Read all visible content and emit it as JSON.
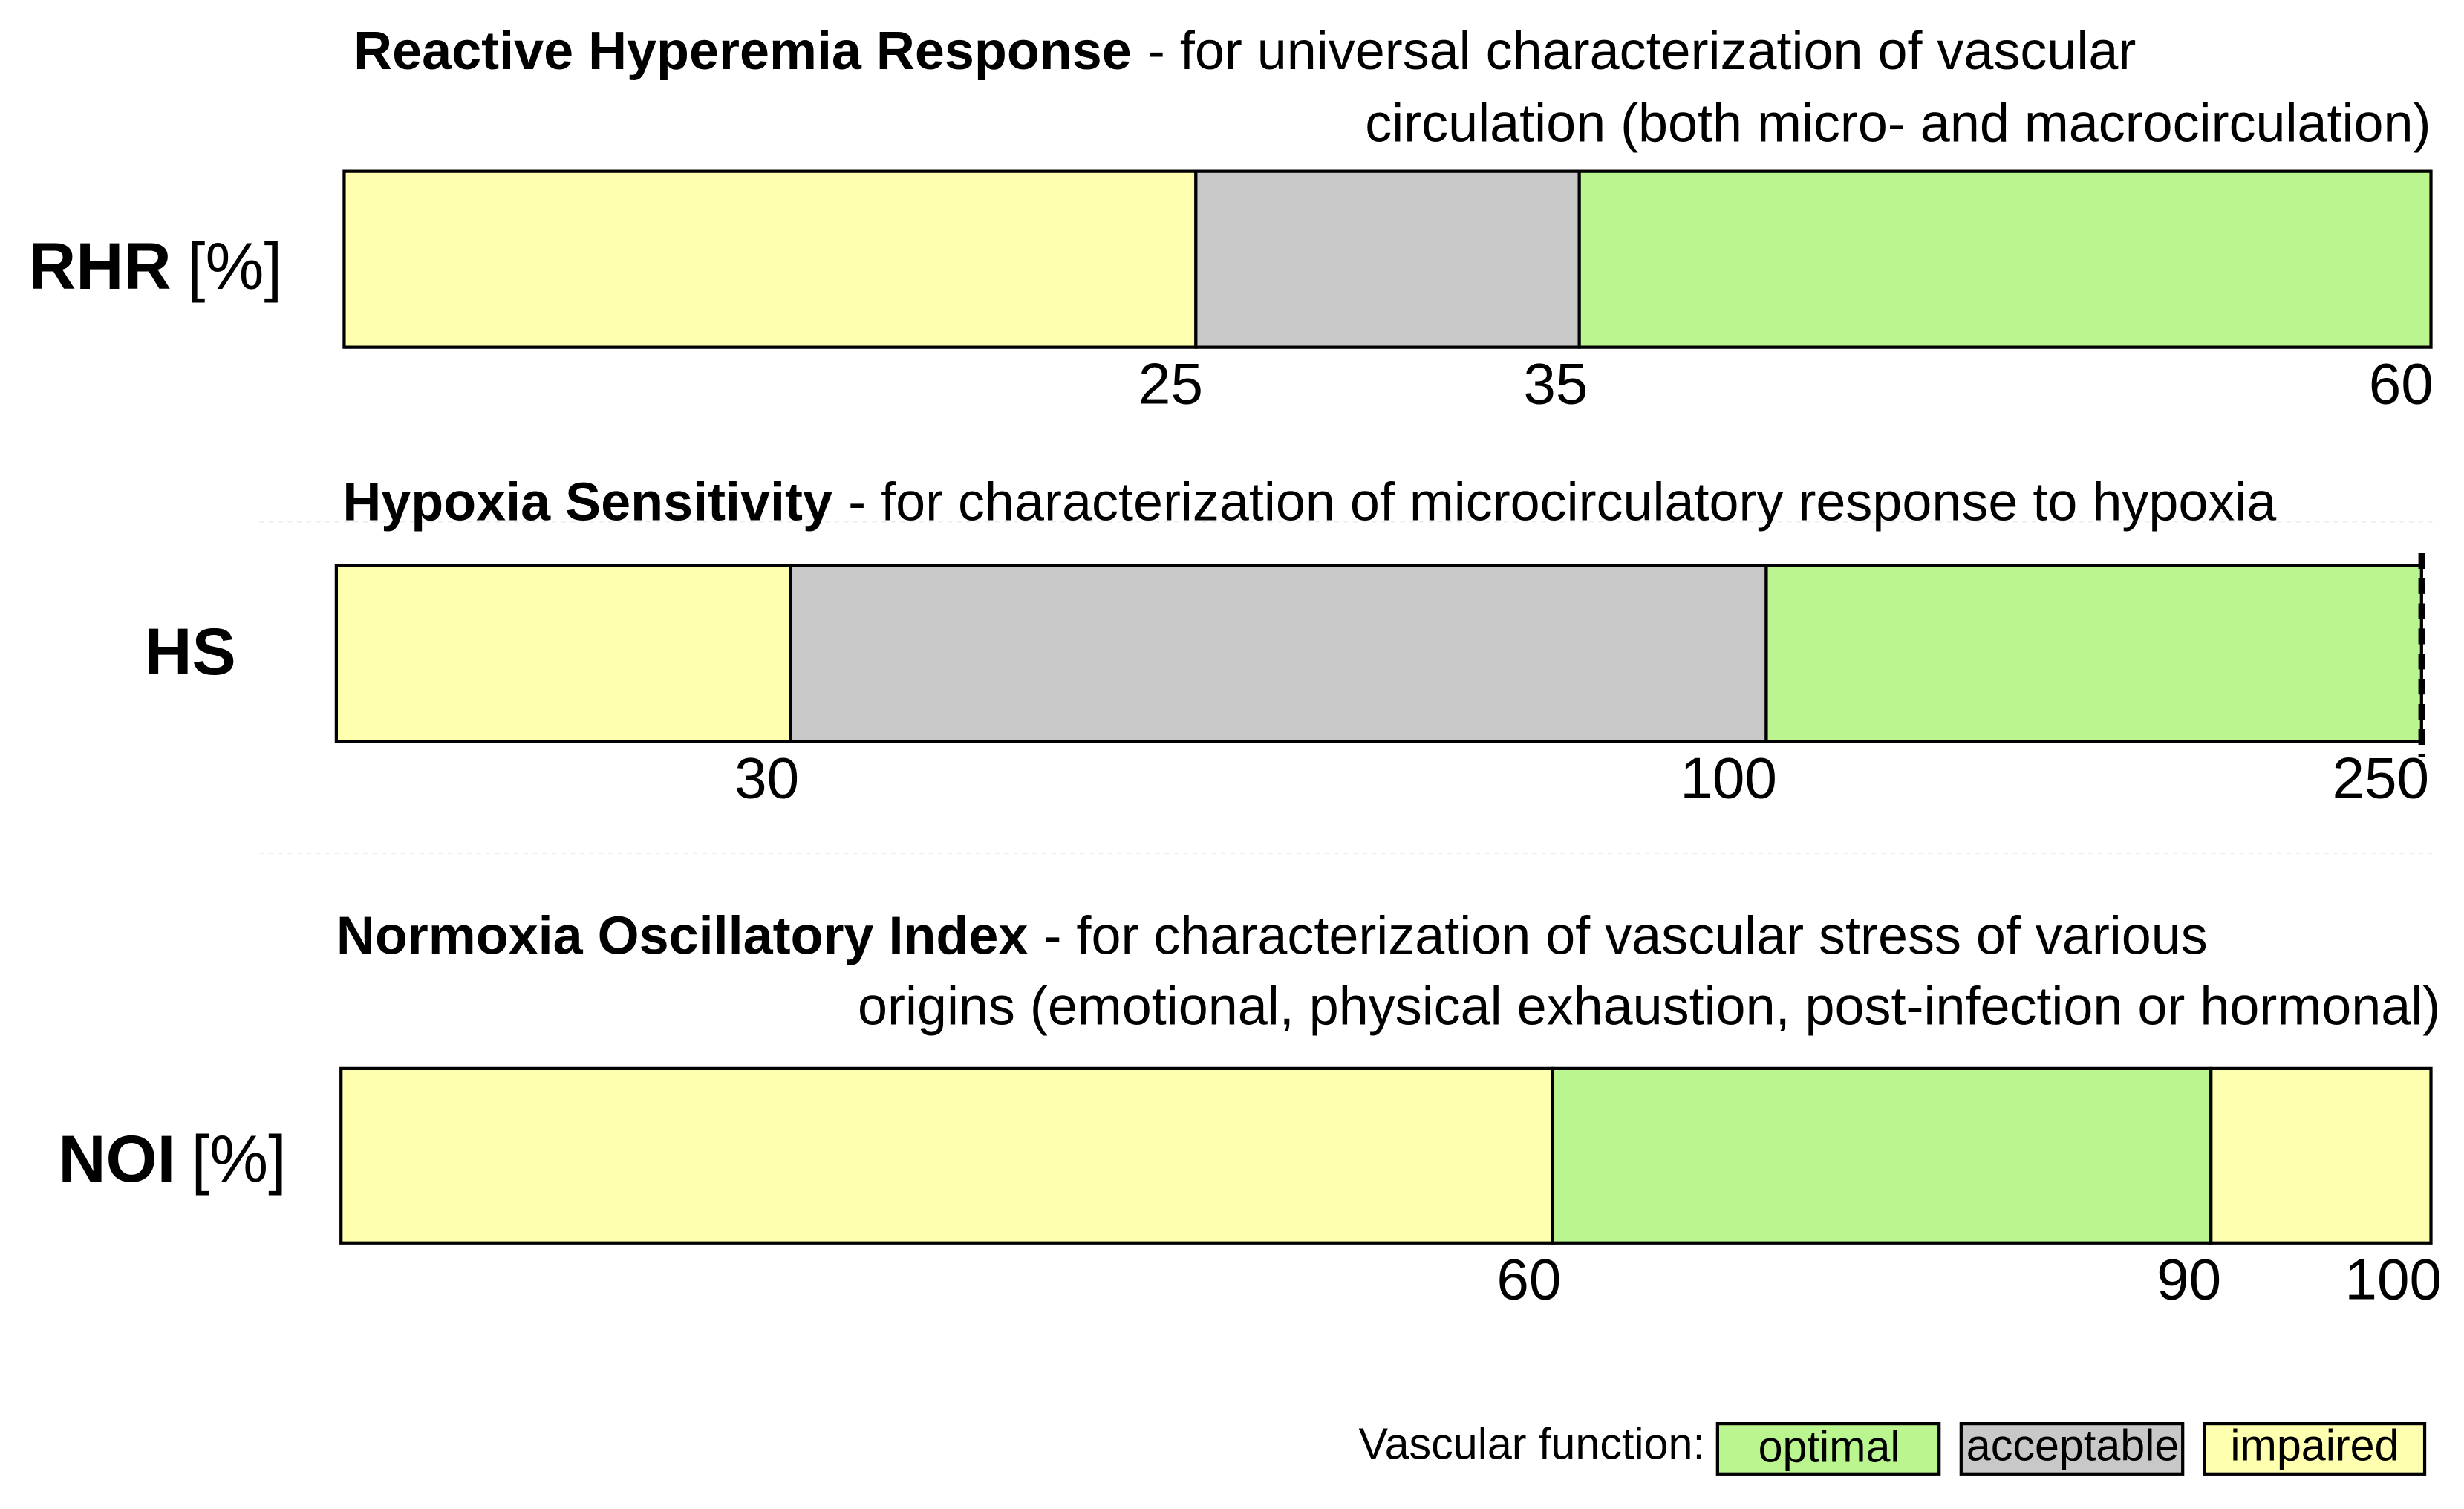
{
  "panels": [
    {
      "title_bold": "Reactive Hyperemia Response",
      "title_line1": "- for universal characterization of vascular",
      "title_line2": "circulation (both micro- and macrocirculation)",
      "label_bold": "RHR",
      "label_unit": "[%]",
      "ticks": [
        "25",
        "35",
        "60"
      ]
    },
    {
      "title_bold": "Hypoxia Sensitivity",
      "title_line1": "- for characterization of microcirculatory response to hypoxia",
      "label_bold": "HS",
      "ticks": [
        "30",
        "100",
        "250"
      ]
    },
    {
      "title_bold": "Normoxia Oscillatory Index",
      "title_line1": "- for characterization of vascular stress of various",
      "title_line2": "origins (emotional, physical exhaustion, post-infection or hormonal)",
      "label_bold": "NOI",
      "label_unit": "[%]",
      "ticks": [
        "60",
        "90",
        "100"
      ]
    }
  ],
  "legend": {
    "title": "Vascular function:",
    "items": [
      "optimal",
      "acceptable",
      "impaired"
    ]
  }
}
